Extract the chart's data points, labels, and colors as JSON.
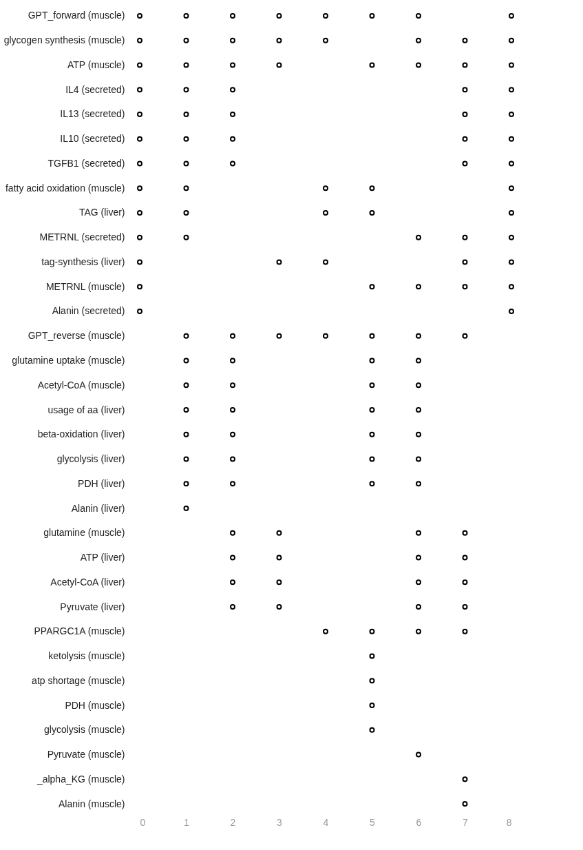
{
  "chart_data": {
    "type": "scatter",
    "orientation": "horizontal",
    "marker": "circle",
    "grid": false,
    "xlim": [
      0,
      8
    ],
    "xticks": [
      0,
      1,
      2,
      3,
      4,
      5,
      6,
      7,
      8
    ],
    "categories": [
      "GPT_forward (muscle)",
      "glycogen synthesis (muscle)",
      "ATP (muscle)",
      "IL4 (secreted)",
      "IL13 (secreted)",
      "IL10 (secreted)",
      "TGFB1 (secreted)",
      "fatty acid oxidation (muscle)",
      "TAG (liver)",
      "METRNL (secreted)",
      "tag-synthesis (liver)",
      "METRNL (muscle)",
      "Alanin (secreted)",
      "GPT_reverse (muscle)",
      "glutamine uptake (muscle)",
      "Acetyl-CoA (muscle)",
      "usage of aa (liver)",
      "beta-oxidation (liver)",
      "glycolysis (liver)",
      "PDH (liver)",
      "Alanin (liver)",
      "glutamine (muscle)",
      "ATP (liver)",
      "Acetyl-CoA (liver)",
      "Pyruvate (liver)",
      "PPARGC1A (muscle)",
      "ketolysis (muscle)",
      "atp shortage (muscle)",
      "PDH (muscle)",
      "glycolysis (muscle)",
      "Pyruvate (muscle)",
      "_alpha_KG (muscle)",
      "Alanin (muscle)"
    ],
    "series": [
      {
        "color": "#000000",
        "values": [
          0,
          0,
          0,
          0,
          0,
          0,
          0,
          0,
          0,
          0,
          0,
          0,
          0,
          null,
          null,
          null,
          null,
          null,
          null,
          null,
          null,
          null,
          null,
          null,
          null,
          null,
          null,
          null,
          null,
          null,
          null,
          null,
          null
        ]
      },
      {
        "color": "#000000",
        "values": [
          1,
          1,
          1,
          1,
          1,
          1,
          1,
          1,
          1,
          1,
          null,
          null,
          null,
          1,
          1,
          1,
          1,
          1,
          1,
          1,
          1,
          null,
          null,
          null,
          null,
          null,
          null,
          null,
          null,
          null,
          null,
          null,
          null
        ]
      },
      {
        "color": "#000000",
        "values": [
          2,
          2,
          2,
          2,
          2,
          2,
          2,
          null,
          null,
          null,
          null,
          null,
          null,
          2,
          2,
          2,
          2,
          2,
          2,
          2,
          null,
          2,
          2,
          2,
          2,
          null,
          null,
          null,
          null,
          null,
          null,
          null,
          null
        ]
      },
      {
        "color": "#000000",
        "values": [
          3,
          3,
          3,
          null,
          null,
          null,
          null,
          null,
          null,
          null,
          3,
          null,
          null,
          3,
          null,
          null,
          null,
          null,
          null,
          null,
          null,
          3,
          3,
          3,
          3,
          null,
          null,
          null,
          null,
          null,
          null,
          null,
          null
        ]
      },
      {
        "color": "#000000",
        "values": [
          4,
          4,
          null,
          null,
          null,
          null,
          null,
          4,
          4,
          null,
          4,
          null,
          null,
          4,
          null,
          null,
          null,
          null,
          null,
          null,
          null,
          null,
          null,
          null,
          null,
          4,
          null,
          null,
          null,
          null,
          null,
          null,
          null
        ]
      },
      {
        "color": "#000000",
        "values": [
          5,
          null,
          5,
          null,
          null,
          null,
          null,
          5,
          5,
          null,
          null,
          5,
          null,
          5,
          5,
          5,
          5,
          5,
          5,
          5,
          null,
          null,
          null,
          null,
          null,
          5,
          5,
          5,
          5,
          5,
          null,
          null,
          null
        ]
      },
      {
        "color": "#000000",
        "values": [
          6,
          6,
          6,
          null,
          null,
          null,
          null,
          null,
          null,
          6,
          null,
          6,
          null,
          6,
          6,
          6,
          6,
          6,
          6,
          6,
          null,
          6,
          6,
          6,
          6,
          6,
          null,
          null,
          null,
          null,
          6,
          null,
          null
        ]
      },
      {
        "color": "#000000",
        "values": [
          null,
          7,
          7,
          7,
          7,
          7,
          7,
          null,
          null,
          7,
          7,
          7,
          null,
          7,
          null,
          null,
          null,
          null,
          null,
          null,
          null,
          7,
          7,
          7,
          7,
          7,
          null,
          null,
          null,
          null,
          null,
          7,
          7
        ]
      },
      {
        "color": "#000000",
        "values": [
          8,
          8,
          8,
          8,
          8,
          8,
          8,
          8,
          8,
          8,
          8,
          8,
          8,
          null,
          null,
          null,
          null,
          null,
          null,
          null,
          null,
          null,
          null,
          null,
          null,
          null,
          null,
          null,
          null,
          null,
          null,
          null,
          null
        ]
      }
    ]
  }
}
